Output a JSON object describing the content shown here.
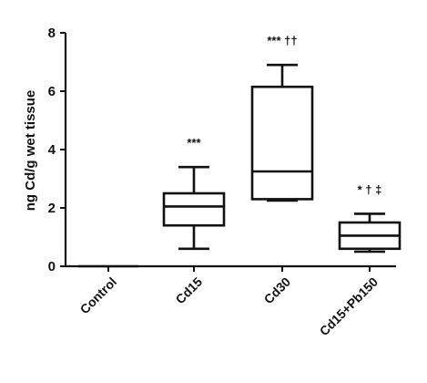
{
  "chart_data": {
    "type": "box",
    "ylabel": "ng Cd/g wet tissue",
    "ylim": [
      0,
      8
    ],
    "yticks": [
      0,
      2,
      4,
      6,
      8
    ],
    "categories": [
      "Control",
      "Cd15",
      "Cd30",
      "Cd15+Pb150"
    ],
    "boxes": [
      {
        "category": "Control",
        "min": 0,
        "q1": 0,
        "median": 0,
        "q3": 0,
        "max": 0,
        "annotation": ""
      },
      {
        "category": "Cd15",
        "min": 0.6,
        "q1": 1.4,
        "median": 2.05,
        "q3": 2.5,
        "max": 3.4,
        "annotation": "***"
      },
      {
        "category": "Cd30",
        "min": 2.25,
        "q1": 2.3,
        "median": 3.25,
        "q3": 6.15,
        "max": 6.9,
        "annotation": "*** ††"
      },
      {
        "category": "Cd15+Pb150",
        "min": 0.5,
        "q1": 0.6,
        "median": 1.05,
        "q3": 1.5,
        "max": 1.8,
        "annotation": "* † ‡"
      }
    ],
    "grid": false,
    "legend": "none"
  }
}
